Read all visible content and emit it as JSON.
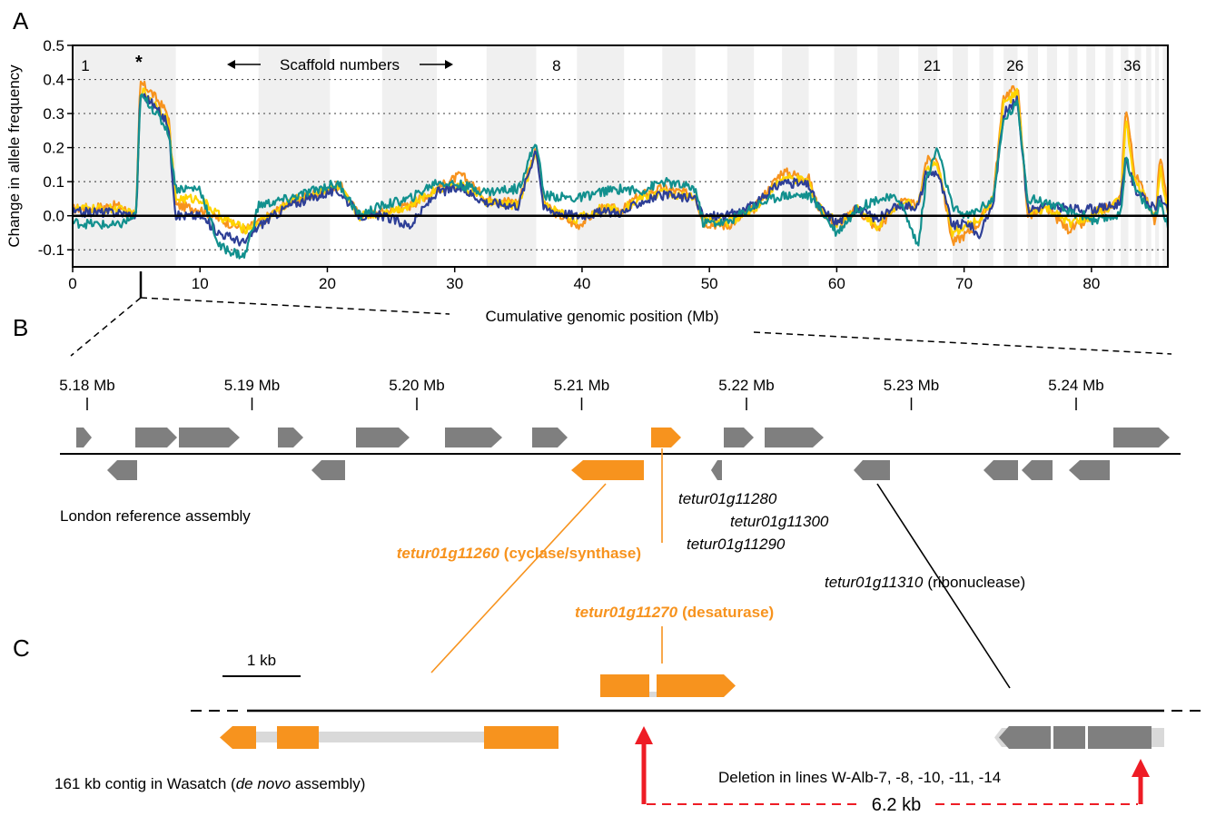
{
  "panel_labels": {
    "a": "A",
    "b": "B",
    "c": "C"
  },
  "colors": {
    "orange": "#F7931E",
    "yellow": "#FFD400",
    "navy": "#2E3F97",
    "teal": "#12908E",
    "gene_gray": "#7F7F7F",
    "intron_gray": "#D9D9D9",
    "band_gray": "#F0F0F0",
    "red": "#EE1C25"
  },
  "chart_data": {
    "type": "line",
    "ylabel": "Change in allele frequency",
    "xlabel": "Cumulative genomic position (Mb)",
    "xlim": [
      0,
      86
    ],
    "ylim": [
      -0.15,
      0.5
    ],
    "xticks": [
      0,
      10,
      20,
      30,
      40,
      50,
      60,
      70,
      80
    ],
    "yticks": [
      -0.1,
      0.0,
      0.1,
      0.2,
      0.3,
      0.4,
      0.5
    ],
    "ytick_labels": [
      "-0.1",
      "0.0",
      "0.1",
      "0.2",
      "0.3",
      "0.4",
      "0.5"
    ],
    "grid": "horizontal dotted",
    "scaffold_labels": [
      {
        "text": "1",
        "x": 1.0
      },
      {
        "text": "*",
        "x": 5.2
      },
      {
        "text": "8",
        "x": 38.0
      },
      {
        "text": "21",
        "x": 67.5
      },
      {
        "text": "26",
        "x": 74.0
      },
      {
        "text": "36",
        "x": 83.2
      }
    ],
    "scaffold_note": "Scaffold numbers",
    "scaffold_bands": [
      [
        0,
        8.1
      ],
      [
        14.6,
        20.2
      ],
      [
        24.3,
        28.6
      ],
      [
        32.5,
        36.4
      ],
      [
        39.6,
        43.3
      ],
      [
        46.3,
        48.9
      ],
      [
        51.4,
        53.5
      ],
      [
        55.7,
        57.8
      ],
      [
        59.8,
        61.6
      ],
      [
        63.2,
        64.9
      ],
      [
        66.4,
        67.9
      ],
      [
        69.1,
        70.3
      ],
      [
        71.2,
        72.3
      ],
      [
        73.1,
        74.2
      ],
      [
        75.0,
        75.8
      ],
      [
        76.5,
        77.3
      ],
      [
        78.2,
        78.9
      ],
      [
        79.6,
        80.3
      ],
      [
        81.1,
        81.7
      ],
      [
        82.3,
        82.9
      ],
      [
        83.4,
        83.9
      ],
      [
        84.3,
        84.7
      ],
      [
        85.0,
        85.3
      ],
      [
        85.6,
        86.0
      ]
    ],
    "series": [
      {
        "color_key": "orange",
        "segments": [
          [
            0,
            0.02
          ],
          [
            3.5,
            0.03
          ],
          [
            5.0,
            0.0
          ],
          [
            5.3,
            0.39
          ],
          [
            6.0,
            0.37
          ],
          [
            7.5,
            0.3
          ],
          [
            8.1,
            0.03
          ],
          [
            10.0,
            0.02
          ],
          [
            11.5,
            -0.01
          ],
          [
            13.5,
            -0.04
          ],
          [
            14.6,
            -0.02
          ],
          [
            17.0,
            0.04
          ],
          [
            20.2,
            0.08
          ],
          [
            21.0,
            0.09
          ],
          [
            22.5,
            0.0
          ],
          [
            24.3,
            0.01
          ],
          [
            26.5,
            0.03
          ],
          [
            28.6,
            0.08
          ],
          [
            30.5,
            0.12
          ],
          [
            32.5,
            0.05
          ],
          [
            35.0,
            0.04
          ],
          [
            36.4,
            0.2
          ],
          [
            37.0,
            0.03
          ],
          [
            39.6,
            -0.03
          ],
          [
            41.5,
            0.02
          ],
          [
            43.3,
            0.02
          ],
          [
            44.5,
            0.06
          ],
          [
            46.3,
            0.08
          ],
          [
            48.9,
            0.06
          ],
          [
            49.5,
            -0.02
          ],
          [
            51.4,
            -0.03
          ],
          [
            53.5,
            0.02
          ],
          [
            55.7,
            0.13
          ],
          [
            57.8,
            0.11
          ],
          [
            58.5,
            0.03
          ],
          [
            60.0,
            -0.03
          ],
          [
            61.6,
            0.02
          ],
          [
            63.2,
            -0.04
          ],
          [
            64.9,
            0.04
          ],
          [
            66.4,
            0.03
          ],
          [
            67.0,
            0.16
          ],
          [
            67.9,
            0.17
          ],
          [
            69.1,
            -0.08
          ],
          [
            70.3,
            -0.05
          ],
          [
            71.2,
            -0.02
          ],
          [
            72.3,
            0.06
          ],
          [
            73.1,
            0.35
          ],
          [
            74.2,
            0.38
          ],
          [
            75.0,
            0.0
          ],
          [
            76.5,
            0.02
          ],
          [
            78.2,
            -0.04
          ],
          [
            79.6,
            -0.02
          ],
          [
            80.3,
            0.01
          ],
          [
            81.7,
            0.03
          ],
          [
            82.3,
            0.05
          ],
          [
            82.7,
            0.33
          ],
          [
            83.4,
            0.12
          ],
          [
            84.3,
            0.06
          ],
          [
            85.0,
            -0.02
          ],
          [
            85.4,
            0.18
          ],
          [
            86.0,
            0.02
          ]
        ]
      },
      {
        "color_key": "yellow",
        "segments": [
          [
            0,
            0.02
          ],
          [
            3.5,
            0.02
          ],
          [
            5.0,
            0.0
          ],
          [
            5.3,
            0.37
          ],
          [
            6.0,
            0.35
          ],
          [
            7.5,
            0.28
          ],
          [
            8.1,
            0.05
          ],
          [
            10.0,
            0.05
          ],
          [
            11.5,
            0.0
          ],
          [
            13.5,
            -0.04
          ],
          [
            14.6,
            -0.02
          ],
          [
            17.0,
            0.04
          ],
          [
            20.2,
            0.08
          ],
          [
            21.0,
            0.08
          ],
          [
            22.5,
            0.0
          ],
          [
            24.3,
            0.01
          ],
          [
            26.5,
            0.03
          ],
          [
            28.6,
            0.08
          ],
          [
            30.5,
            0.09
          ],
          [
            32.5,
            0.04
          ],
          [
            35.0,
            0.03
          ],
          [
            36.4,
            0.19
          ],
          [
            37.0,
            0.03
          ],
          [
            39.6,
            -0.01
          ],
          [
            41.5,
            0.02
          ],
          [
            43.3,
            0.02
          ],
          [
            44.5,
            0.05
          ],
          [
            46.3,
            0.07
          ],
          [
            48.9,
            0.05
          ],
          [
            49.5,
            -0.01
          ],
          [
            51.4,
            -0.02
          ],
          [
            53.5,
            0.02
          ],
          [
            55.7,
            0.11
          ],
          [
            57.8,
            0.1
          ],
          [
            58.5,
            0.03
          ],
          [
            60.0,
            -0.02
          ],
          [
            61.6,
            0.02
          ],
          [
            63.2,
            -0.03
          ],
          [
            64.9,
            0.04
          ],
          [
            66.4,
            0.03
          ],
          [
            67.0,
            0.14
          ],
          [
            67.9,
            0.15
          ],
          [
            69.1,
            -0.05
          ],
          [
            70.3,
            -0.03
          ],
          [
            71.2,
            -0.01
          ],
          [
            72.3,
            0.05
          ],
          [
            73.1,
            0.33
          ],
          [
            74.2,
            0.36
          ],
          [
            75.0,
            0.01
          ],
          [
            76.5,
            0.02
          ],
          [
            78.2,
            -0.02
          ],
          [
            79.6,
            -0.01
          ],
          [
            80.3,
            0.01
          ],
          [
            81.7,
            0.03
          ],
          [
            82.3,
            0.05
          ],
          [
            82.7,
            0.28
          ],
          [
            83.4,
            0.1
          ],
          [
            84.3,
            0.05
          ],
          [
            85.0,
            -0.01
          ],
          [
            85.4,
            0.14
          ],
          [
            86.0,
            0.02
          ]
        ]
      },
      {
        "color_key": "navy",
        "segments": [
          [
            0,
            0.01
          ],
          [
            3.5,
            0.01
          ],
          [
            5.0,
            0.0
          ],
          [
            5.3,
            0.36
          ],
          [
            6.0,
            0.34
          ],
          [
            7.5,
            0.27
          ],
          [
            8.1,
            0.0
          ],
          [
            10.0,
            0.0
          ],
          [
            11.5,
            -0.05
          ],
          [
            13.5,
            -0.08
          ],
          [
            14.6,
            -0.03
          ],
          [
            17.0,
            0.03
          ],
          [
            20.2,
            0.07
          ],
          [
            21.0,
            0.07
          ],
          [
            22.5,
            0.0
          ],
          [
            24.3,
            0.0
          ],
          [
            26.5,
            -0.03
          ],
          [
            28.6,
            0.07
          ],
          [
            30.5,
            0.08
          ],
          [
            32.5,
            0.04
          ],
          [
            35.0,
            0.03
          ],
          [
            36.4,
            0.2
          ],
          [
            37.0,
            0.02
          ],
          [
            39.6,
            0.0
          ],
          [
            41.5,
            0.01
          ],
          [
            43.3,
            0.01
          ],
          [
            44.5,
            0.04
          ],
          [
            46.3,
            0.06
          ],
          [
            48.9,
            0.05
          ],
          [
            49.5,
            0.0
          ],
          [
            51.4,
            0.0
          ],
          [
            53.5,
            0.03
          ],
          [
            55.7,
            0.1
          ],
          [
            57.8,
            0.09
          ],
          [
            58.5,
            0.03
          ],
          [
            60.0,
            -0.02
          ],
          [
            61.6,
            0.02
          ],
          [
            63.2,
            -0.01
          ],
          [
            64.9,
            0.03
          ],
          [
            66.4,
            0.03
          ],
          [
            67.0,
            0.12
          ],
          [
            67.9,
            0.13
          ],
          [
            69.1,
            -0.03
          ],
          [
            70.3,
            -0.02
          ],
          [
            71.2,
            -0.06
          ],
          [
            72.3,
            0.04
          ],
          [
            73.1,
            0.3
          ],
          [
            74.2,
            0.34
          ],
          [
            75.0,
            0.02
          ],
          [
            76.5,
            0.03
          ],
          [
            78.2,
            0.02
          ],
          [
            79.6,
            0.02
          ],
          [
            80.3,
            0.02
          ],
          [
            81.7,
            0.03
          ],
          [
            82.3,
            0.04
          ],
          [
            82.7,
            0.17
          ],
          [
            83.4,
            0.08
          ],
          [
            84.3,
            0.04
          ],
          [
            85.0,
            0.02
          ],
          [
            85.4,
            0.06
          ],
          [
            86.0,
            0.01
          ]
        ]
      },
      {
        "color_key": "teal",
        "segments": [
          [
            0,
            -0.02
          ],
          [
            3.5,
            -0.03
          ],
          [
            5.0,
            0.0
          ],
          [
            5.3,
            0.35
          ],
          [
            6.0,
            0.33
          ],
          [
            7.5,
            0.25
          ],
          [
            8.1,
            0.08
          ],
          [
            10.0,
            0.08
          ],
          [
            11.5,
            -0.09
          ],
          [
            13.5,
            -0.12
          ],
          [
            14.6,
            0.03
          ],
          [
            17.0,
            0.05
          ],
          [
            20.2,
            0.09
          ],
          [
            21.0,
            0.09
          ],
          [
            22.5,
            0.0
          ],
          [
            24.3,
            0.03
          ],
          [
            26.5,
            0.05
          ],
          [
            28.6,
            0.1
          ],
          [
            30.5,
            0.09
          ],
          [
            32.5,
            0.07
          ],
          [
            35.0,
            0.08
          ],
          [
            36.4,
            0.22
          ],
          [
            37.0,
            0.06
          ],
          [
            39.6,
            0.05
          ],
          [
            41.5,
            0.07
          ],
          [
            43.3,
            0.08
          ],
          [
            44.5,
            0.07
          ],
          [
            46.3,
            0.1
          ],
          [
            48.9,
            0.08
          ],
          [
            49.5,
            -0.02
          ],
          [
            51.4,
            -0.02
          ],
          [
            53.5,
            0.03
          ],
          [
            55.7,
            0.06
          ],
          [
            57.8,
            0.06
          ],
          [
            58.5,
            0.03
          ],
          [
            60.0,
            -0.05
          ],
          [
            61.6,
            0.02
          ],
          [
            63.2,
            0.05
          ],
          [
            64.9,
            0.05
          ],
          [
            66.4,
            -0.09
          ],
          [
            67.0,
            0.1
          ],
          [
            67.9,
            0.2
          ],
          [
            69.1,
            0.02
          ],
          [
            70.3,
            0.0
          ],
          [
            71.2,
            0.02
          ],
          [
            72.3,
            0.05
          ],
          [
            73.1,
            0.28
          ],
          [
            74.2,
            0.33
          ],
          [
            75.0,
            0.05
          ],
          [
            76.5,
            0.04
          ],
          [
            78.2,
            0.01
          ],
          [
            79.6,
            0.0
          ],
          [
            80.3,
            -0.02
          ],
          [
            81.7,
            0.0
          ],
          [
            82.3,
            0.0
          ],
          [
            82.7,
            0.18
          ],
          [
            83.4,
            0.08
          ],
          [
            84.3,
            0.03
          ],
          [
            85.0,
            0.0
          ],
          [
            85.4,
            0.04
          ],
          [
            86.0,
            -0.03
          ]
        ]
      }
    ]
  },
  "panel_b": {
    "ticks": [
      {
        "label": "5.18 Mb",
        "pos": 5.18
      },
      {
        "label": "5.19 Mb",
        "pos": 5.19
      },
      {
        "label": "5.20 Mb",
        "pos": 5.2
      },
      {
        "label": "5.21 Mb",
        "pos": 5.21
      },
      {
        "label": "5.22 Mb",
        "pos": 5.22
      },
      {
        "label": "5.23 Mb",
        "pos": 5.23
      },
      {
        "label": "5.24 Mb",
        "pos": 5.24
      }
    ],
    "assembly_label": "London reference assembly",
    "gene_labels": {
      "g11280": "tetur01g11280",
      "g11300": "tetur01g11300",
      "g11290": "tetur01g11290",
      "g11260_name": "tetur01g11260",
      "g11260_desc": "(cyclase/synthase)",
      "g11270_name": "tetur01g11270",
      "g11270_desc": "(desaturase)",
      "g11310_name": "tetur01g11310",
      "g11310_desc": "(ribonuclease)"
    }
  },
  "panel_c": {
    "scale_label": "1 kb",
    "contig_label_pre": "161 kb contig in Wasatch (",
    "contig_label_italic": "de novo",
    "contig_label_post": " assembly)",
    "deletion_label": "Deletion in lines W-Alb-7, -8, -10, -11, -14",
    "deletion_size": "6.2 kb"
  }
}
